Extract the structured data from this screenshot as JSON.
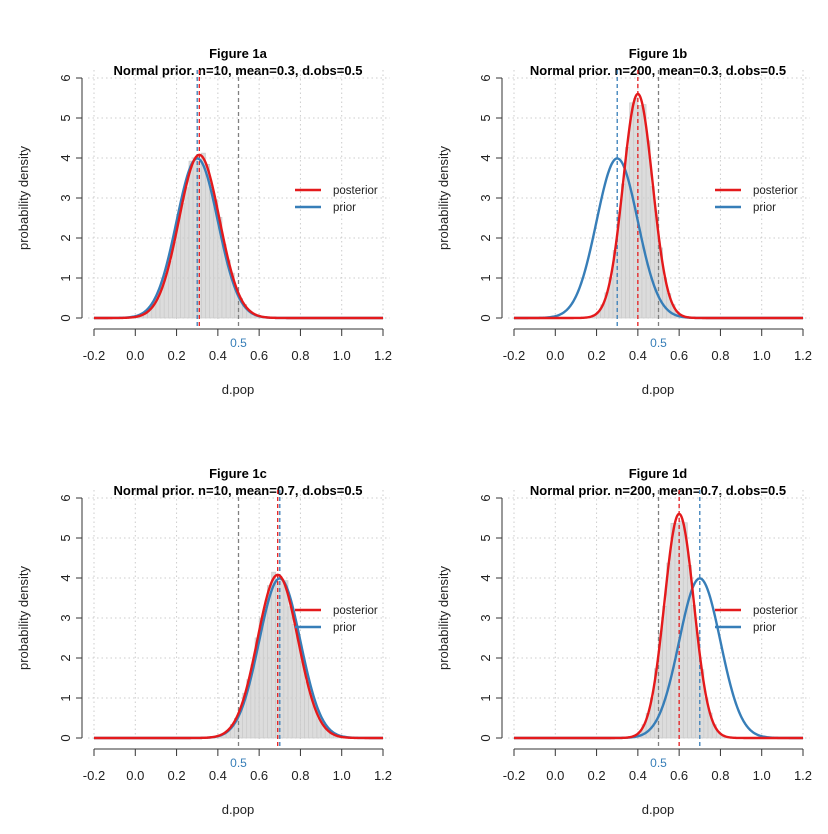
{
  "colors": {
    "posterior": "#e41a1c",
    "prior": "#377eb8",
    "observed": "#808080",
    "histogram_fill": "#dcdcdc",
    "histogram_stroke": "#c8c8c8",
    "grid": "#cccccc"
  },
  "chart_data": [
    {
      "type": "line",
      "title": "Figure 1a",
      "subtitle": "Normal prior. n=10, mean=0.3, d.obs=0.5",
      "xlabel": "d.pop",
      "ylabel": "probability density",
      "xlim": [
        -0.2,
        1.2
      ],
      "ylim": [
        0,
        6
      ],
      "xticks": [
        "-0.2",
        "0.0",
        "0.2",
        "0.4",
        "0.6",
        "0.8",
        "1.0",
        "1.2"
      ],
      "yticks": [
        "0",
        "1",
        "2",
        "3",
        "4",
        "5",
        "6"
      ],
      "grid": true,
      "legend_placement": "right",
      "series": [
        {
          "name": "posterior",
          "distribution": "normal",
          "mean": 0.31,
          "sd": 0.0978,
          "color": "#e41a1c"
        },
        {
          "name": "prior",
          "distribution": "normal",
          "mean": 0.3,
          "sd": 0.1,
          "color": "#377eb8"
        }
      ],
      "histogram": {
        "of": "posterior",
        "bin_width": 0.02
      },
      "vlines": [
        {
          "x": 0.31,
          "color": "#e41a1c"
        },
        {
          "x": 0.3,
          "color": "#377eb8"
        },
        {
          "x": 0.5,
          "color": "#808080"
        }
      ],
      "obs_label": "0.5"
    },
    {
      "type": "line",
      "title": "Figure 1b",
      "subtitle": "Normal prior. n=200, mean=0.3, d.obs=0.5",
      "xlabel": "d.pop",
      "ylabel": "probability density",
      "xlim": [
        -0.2,
        1.2
      ],
      "ylim": [
        0,
        6
      ],
      "xticks": [
        "-0.2",
        "0.0",
        "0.2",
        "0.4",
        "0.6",
        "0.8",
        "1.0",
        "1.2"
      ],
      "yticks": [
        "0",
        "1",
        "2",
        "3",
        "4",
        "5",
        "6"
      ],
      "grid": true,
      "legend_placement": "right",
      "series": [
        {
          "name": "posterior",
          "distribution": "normal",
          "mean": 0.4,
          "sd": 0.0712,
          "color": "#e41a1c"
        },
        {
          "name": "prior",
          "distribution": "normal",
          "mean": 0.3,
          "sd": 0.1,
          "color": "#377eb8"
        }
      ],
      "histogram": {
        "of": "posterior",
        "bin_width": 0.02
      },
      "vlines": [
        {
          "x": 0.4,
          "color": "#e41a1c"
        },
        {
          "x": 0.3,
          "color": "#377eb8"
        },
        {
          "x": 0.5,
          "color": "#808080"
        }
      ],
      "obs_label": "0.5"
    },
    {
      "type": "line",
      "title": "Figure 1c",
      "subtitle": "Normal prior. n=10, mean=0.7, d.obs=0.5",
      "xlabel": "d.pop",
      "ylabel": "probability density",
      "xlim": [
        -0.2,
        1.2
      ],
      "ylim": [
        0,
        6
      ],
      "xticks": [
        "-0.2",
        "0.0",
        "0.2",
        "0.4",
        "0.6",
        "0.8",
        "1.0",
        "1.2"
      ],
      "yticks": [
        "0",
        "1",
        "2",
        "3",
        "4",
        "5",
        "6"
      ],
      "grid": true,
      "legend_placement": "right",
      "series": [
        {
          "name": "posterior",
          "distribution": "normal",
          "mean": 0.69,
          "sd": 0.0978,
          "color": "#e41a1c"
        },
        {
          "name": "prior",
          "distribution": "normal",
          "mean": 0.7,
          "sd": 0.1,
          "color": "#377eb8"
        }
      ],
      "histogram": {
        "of": "posterior",
        "bin_width": 0.02
      },
      "vlines": [
        {
          "x": 0.69,
          "color": "#e41a1c"
        },
        {
          "x": 0.7,
          "color": "#377eb8"
        },
        {
          "x": 0.5,
          "color": "#808080"
        }
      ],
      "obs_label": "0.5"
    },
    {
      "type": "line",
      "title": "Figure 1d",
      "subtitle": "Normal prior. n=200, mean=0.7, d.obs=0.5",
      "xlabel": "d.pop",
      "ylabel": "probability density",
      "xlim": [
        -0.2,
        1.2
      ],
      "ylim": [
        0,
        6
      ],
      "xticks": [
        "-0.2",
        "0.0",
        "0.2",
        "0.4",
        "0.6",
        "0.8",
        "1.0",
        "1.2"
      ],
      "yticks": [
        "0",
        "1",
        "2",
        "3",
        "4",
        "5",
        "6"
      ],
      "grid": true,
      "legend_placement": "right",
      "series": [
        {
          "name": "posterior",
          "distribution": "normal",
          "mean": 0.6,
          "sd": 0.0712,
          "color": "#e41a1c"
        },
        {
          "name": "prior",
          "distribution": "normal",
          "mean": 0.7,
          "sd": 0.1,
          "color": "#377eb8"
        }
      ],
      "histogram": {
        "of": "posterior",
        "bin_width": 0.02
      },
      "vlines": [
        {
          "x": 0.6,
          "color": "#e41a1c"
        },
        {
          "x": 0.7,
          "color": "#377eb8"
        },
        {
          "x": 0.5,
          "color": "#808080"
        }
      ],
      "obs_label": "0.5"
    }
  ]
}
